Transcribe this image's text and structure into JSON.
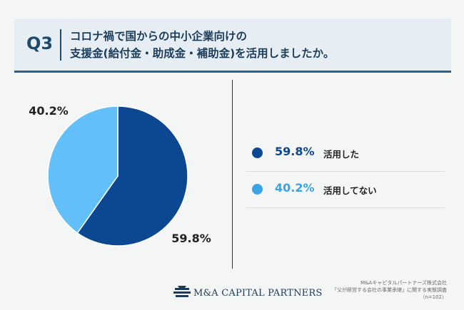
{
  "question": {
    "number": "Q3",
    "line1": "コロナ禍で国からの中小企業向けの",
    "line2": "支援金(給付金・助成金・補助金)を活用しましたか。"
  },
  "chart_data": {
    "type": "pie",
    "title": "",
    "categories": [
      "活用した",
      "活用してない"
    ],
    "values": [
      59.8,
      40.2
    ],
    "labels": [
      "59.8%",
      "40.2%"
    ],
    "colors": [
      "#0c4791",
      "#63bff7"
    ],
    "start_angle_deg": 0,
    "direction": "clockwise",
    "legend_position": "right"
  },
  "legend": [
    {
      "value": "59.8%",
      "label": "活用した",
      "color": "#0c4791"
    },
    {
      "value": "40.2%",
      "label": "活用してない",
      "color": "#3aa3e8"
    }
  ],
  "logo": {
    "text": "M&A CAPITAL PARTNERS",
    "brand_color": "#1e3a5a"
  },
  "source": {
    "line1": "M&Aキャピタルパートナーズ株式会社",
    "line2": "「父が経営する会社の事業承継」に関する実態調査",
    "line3": "（n=102）"
  }
}
